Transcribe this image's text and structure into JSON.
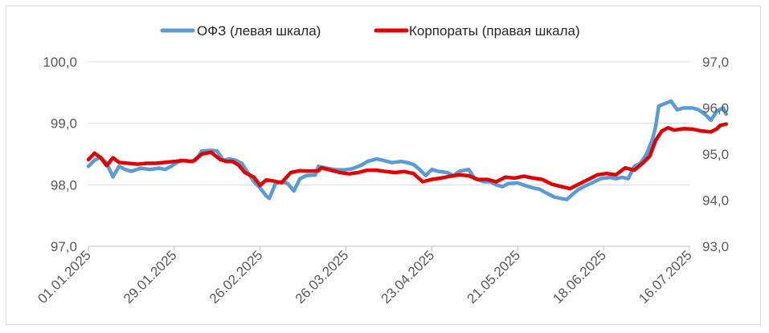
{
  "chart_data": {
    "type": "line",
    "legend_position": "top-center",
    "grid": "horizontal",
    "x_ticks": [
      "01.01.2025",
      "29.01.2025",
      "26.02.2025",
      "26.03.2025",
      "23.04.2025",
      "21.05.2025",
      "18.06.2025",
      "16.07.2025"
    ],
    "y_left": {
      "ticks": [
        "97,0",
        "98,0",
        "99,0",
        "100,0"
      ],
      "min": 97.0,
      "max": 100.0
    },
    "y_right": {
      "ticks": [
        "93,0",
        "94,0",
        "95,0",
        "96,0",
        "97,0"
      ],
      "min": 93.0,
      "max": 97.0
    },
    "series": [
      {
        "name": "ОФЗ (левая шкала)",
        "axis": "left",
        "color": "#5b9bd5",
        "points": [
          [
            "2025-01-01",
            98.3
          ],
          [
            "2025-01-03",
            98.4
          ],
          [
            "2025-01-05",
            98.45
          ],
          [
            "2025-01-07",
            98.35
          ],
          [
            "2025-01-09",
            98.13
          ],
          [
            "2025-01-11",
            98.3
          ],
          [
            "2025-01-13",
            98.25
          ],
          [
            "2025-01-15",
            98.22
          ],
          [
            "2025-01-18",
            98.27
          ],
          [
            "2025-01-21",
            98.25
          ],
          [
            "2025-01-24",
            98.27
          ],
          [
            "2025-01-26",
            98.25
          ],
          [
            "2025-01-28",
            98.3
          ],
          [
            "2025-01-31",
            98.4
          ],
          [
            "2025-02-03",
            98.38
          ],
          [
            "2025-02-05",
            98.4
          ],
          [
            "2025-02-07",
            98.55
          ],
          [
            "2025-02-10",
            98.56
          ],
          [
            "2025-02-12",
            98.55
          ],
          [
            "2025-02-14",
            98.4
          ],
          [
            "2025-02-16",
            98.42
          ],
          [
            "2025-02-18",
            98.4
          ],
          [
            "2025-02-20",
            98.35
          ],
          [
            "2025-02-22",
            98.2
          ],
          [
            "2025-02-24",
            98.05
          ],
          [
            "2025-02-26",
            97.95
          ],
          [
            "2025-02-28",
            97.82
          ],
          [
            "2025-03-01",
            97.78
          ],
          [
            "2025-03-03",
            98.02
          ],
          [
            "2025-03-05",
            98.05
          ],
          [
            "2025-03-07",
            98.02
          ],
          [
            "2025-03-09",
            97.9
          ],
          [
            "2025-03-11",
            98.1
          ],
          [
            "2025-03-13",
            98.15
          ],
          [
            "2025-03-16",
            98.16
          ],
          [
            "2025-03-17",
            98.3
          ],
          [
            "2025-03-19",
            98.28
          ],
          [
            "2025-03-22",
            98.25
          ],
          [
            "2025-03-25",
            98.24
          ],
          [
            "2025-03-28",
            98.26
          ],
          [
            "2025-03-31",
            98.32
          ],
          [
            "2025-04-02",
            98.38
          ],
          [
            "2025-04-05",
            98.42
          ],
          [
            "2025-04-07",
            98.4
          ],
          [
            "2025-04-10",
            98.36
          ],
          [
            "2025-04-13",
            98.38
          ],
          [
            "2025-04-15",
            98.36
          ],
          [
            "2025-04-17",
            98.33
          ],
          [
            "2025-04-19",
            98.25
          ],
          [
            "2025-04-21",
            98.15
          ],
          [
            "2025-04-23",
            98.25
          ],
          [
            "2025-04-25",
            98.22
          ],
          [
            "2025-04-28",
            98.2
          ],
          [
            "2025-04-30",
            98.15
          ],
          [
            "2025-05-02",
            98.22
          ],
          [
            "2025-05-05",
            98.25
          ],
          [
            "2025-05-07",
            98.1
          ],
          [
            "2025-05-10",
            98.05
          ],
          [
            "2025-05-12",
            98.05
          ],
          [
            "2025-05-14",
            98.0
          ],
          [
            "2025-05-16",
            97.97
          ],
          [
            "2025-05-18",
            98.02
          ],
          [
            "2025-05-21",
            98.03
          ],
          [
            "2025-05-24",
            97.98
          ],
          [
            "2025-05-26",
            97.95
          ],
          [
            "2025-05-28",
            97.93
          ],
          [
            "2025-05-31",
            97.85
          ],
          [
            "2025-06-02",
            97.8
          ],
          [
            "2025-06-04",
            97.78
          ],
          [
            "2025-06-06",
            97.76
          ],
          [
            "2025-06-08",
            97.85
          ],
          [
            "2025-06-10",
            97.93
          ],
          [
            "2025-06-12",
            97.98
          ],
          [
            "2025-06-15",
            98.05
          ],
          [
            "2025-06-17",
            98.1
          ],
          [
            "2025-06-20",
            98.12
          ],
          [
            "2025-06-22",
            98.1
          ],
          [
            "2025-06-24",
            98.12
          ],
          [
            "2025-06-26",
            98.1
          ],
          [
            "2025-06-28",
            98.3
          ],
          [
            "2025-06-30",
            98.35
          ],
          [
            "2025-07-02",
            98.5
          ],
          [
            "2025-07-04",
            98.75
          ],
          [
            "2025-07-05",
            98.95
          ],
          [
            "2025-07-06",
            99.28
          ],
          [
            "2025-07-08",
            99.32
          ],
          [
            "2025-07-10",
            99.36
          ],
          [
            "2025-07-12",
            99.22
          ],
          [
            "2025-07-14",
            99.25
          ],
          [
            "2025-07-17",
            99.25
          ],
          [
            "2025-07-19",
            99.22
          ],
          [
            "2025-07-21",
            99.15
          ],
          [
            "2025-07-23",
            99.05
          ],
          [
            "2025-07-25",
            99.2
          ],
          [
            "2025-07-27",
            99.25
          ],
          [
            "2025-07-28",
            99.15
          ]
        ]
      },
      {
        "name": "Корпораты (правая шкала)",
        "axis": "right",
        "color": "#e00000",
        "points": [
          [
            "2025-01-01",
            94.88
          ],
          [
            "2025-01-03",
            95.02
          ],
          [
            "2025-01-05",
            94.92
          ],
          [
            "2025-01-07",
            94.75
          ],
          [
            "2025-01-09",
            94.92
          ],
          [
            "2025-01-11",
            94.82
          ],
          [
            "2025-01-14",
            94.8
          ],
          [
            "2025-01-17",
            94.78
          ],
          [
            "2025-01-20",
            94.8
          ],
          [
            "2025-01-23",
            94.8
          ],
          [
            "2025-01-26",
            94.82
          ],
          [
            "2025-01-29",
            94.84
          ],
          [
            "2025-02-01",
            94.86
          ],
          [
            "2025-02-04",
            94.84
          ],
          [
            "2025-02-07",
            95.0
          ],
          [
            "2025-02-10",
            95.04
          ],
          [
            "2025-02-13",
            94.88
          ],
          [
            "2025-02-15",
            94.84
          ],
          [
            "2025-02-17",
            94.84
          ],
          [
            "2025-02-19",
            94.76
          ],
          [
            "2025-02-21",
            94.6
          ],
          [
            "2025-02-24",
            94.5
          ],
          [
            "2025-02-26",
            94.32
          ],
          [
            "2025-02-28",
            94.44
          ],
          [
            "2025-03-02",
            94.42
          ],
          [
            "2025-03-05",
            94.38
          ],
          [
            "2025-03-08",
            94.6
          ],
          [
            "2025-03-11",
            94.64
          ],
          [
            "2025-03-14",
            94.63
          ],
          [
            "2025-03-17",
            94.64
          ],
          [
            "2025-03-18",
            94.7
          ],
          [
            "2025-03-21",
            94.65
          ],
          [
            "2025-03-24",
            94.6
          ],
          [
            "2025-03-27",
            94.57
          ],
          [
            "2025-03-30",
            94.6
          ],
          [
            "2025-04-02",
            94.65
          ],
          [
            "2025-04-05",
            94.65
          ],
          [
            "2025-04-08",
            94.62
          ],
          [
            "2025-04-11",
            94.6
          ],
          [
            "2025-04-14",
            94.62
          ],
          [
            "2025-04-17",
            94.58
          ],
          [
            "2025-04-20",
            94.4
          ],
          [
            "2025-04-23",
            94.45
          ],
          [
            "2025-04-26",
            94.48
          ],
          [
            "2025-04-29",
            94.52
          ],
          [
            "2025-05-02",
            94.55
          ],
          [
            "2025-05-05",
            94.53
          ],
          [
            "2025-05-08",
            94.45
          ],
          [
            "2025-05-11",
            94.45
          ],
          [
            "2025-05-14",
            94.4
          ],
          [
            "2025-05-17",
            94.5
          ],
          [
            "2025-05-20",
            94.48
          ],
          [
            "2025-05-23",
            94.52
          ],
          [
            "2025-05-26",
            94.48
          ],
          [
            "2025-05-29",
            94.45
          ],
          [
            "2025-06-01",
            94.35
          ],
          [
            "2025-06-04",
            94.3
          ],
          [
            "2025-06-07",
            94.25
          ],
          [
            "2025-06-10",
            94.35
          ],
          [
            "2025-06-13",
            94.45
          ],
          [
            "2025-06-16",
            94.55
          ],
          [
            "2025-06-19",
            94.58
          ],
          [
            "2025-06-22",
            94.55
          ],
          [
            "2025-06-25",
            94.7
          ],
          [
            "2025-06-28",
            94.65
          ],
          [
            "2025-07-01",
            94.82
          ],
          [
            "2025-07-03",
            94.95
          ],
          [
            "2025-07-05",
            95.3
          ],
          [
            "2025-07-07",
            95.5
          ],
          [
            "2025-07-09",
            95.57
          ],
          [
            "2025-07-11",
            95.52
          ],
          [
            "2025-07-14",
            95.55
          ],
          [
            "2025-07-17",
            95.54
          ],
          [
            "2025-07-20",
            95.5
          ],
          [
            "2025-07-23",
            95.48
          ],
          [
            "2025-07-25",
            95.55
          ],
          [
            "2025-07-26",
            95.62
          ],
          [
            "2025-07-28",
            95.65
          ]
        ]
      }
    ]
  }
}
